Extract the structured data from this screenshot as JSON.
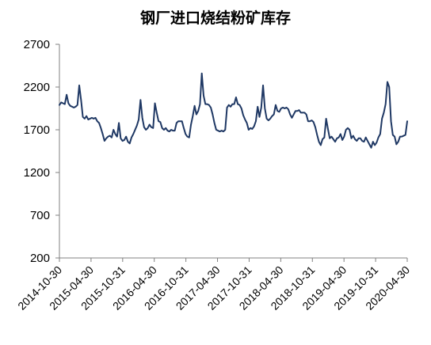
{
  "chart_data": {
    "type": "line",
    "title": "钢厂进口烧结粉矿库存",
    "xlabel": "",
    "ylabel": "",
    "ylim": [
      200,
      2700
    ],
    "y_ticks": [
      200,
      700,
      1200,
      1700,
      2200,
      2700
    ],
    "x_tick_labels": [
      "2014-10-30",
      "2015-04-30",
      "2015-10-31",
      "2016-04-30",
      "2016-10-31",
      "2017-04-30",
      "2017-10-31",
      "2018-04-30",
      "2018-10-31",
      "2019-04-30",
      "2019-10-31",
      "2020-04-30"
    ],
    "grid": false,
    "legend": "none",
    "line_color": "#1f3864",
    "series": [
      {
        "values": [
          1990,
          2020,
          2010,
          2000,
          2110,
          2010,
          1980,
          1970,
          1960,
          1970,
          1990,
          2220,
          2050,
          1850,
          1830,
          1860,
          1820,
          1830,
          1840,
          1830,
          1840,
          1800,
          1780,
          1720,
          1650,
          1570,
          1600,
          1620,
          1630,
          1610,
          1700,
          1650,
          1620,
          1780,
          1600,
          1570,
          1580,
          1620,
          1560,
          1540,
          1610,
          1650,
          1700,
          1750,
          1820,
          2050,
          1840,
          1730,
          1700,
          1720,
          1760,
          1730,
          1720,
          2010,
          1900,
          1800,
          1790,
          1720,
          1700,
          1720,
          1690,
          1680,
          1700,
          1690,
          1690,
          1780,
          1800,
          1800,
          1800,
          1720,
          1650,
          1620,
          1610,
          1760,
          1860,
          1980,
          1880,
          1920,
          2000,
          2360,
          2100,
          2000,
          2000,
          1990,
          1960,
          1880,
          1780,
          1700,
          1690,
          1680,
          1690,
          1680,
          1700,
          1960,
          1990,
          1970,
          2000,
          2000,
          2080,
          2000,
          1990,
          1950,
          1870,
          1820,
          1780,
          1700,
          1720,
          1710,
          1740,
          1800,
          1970,
          1850,
          1960,
          2220,
          1950,
          1830,
          1810,
          1830,
          1860,
          1880,
          1990,
          1920,
          1910,
          1950,
          1960,
          1950,
          1960,
          1940,
          1880,
          1840,
          1880,
          1920,
          1920,
          1930,
          1900,
          1900,
          1900,
          1880,
          1800,
          1800,
          1810,
          1790,
          1730,
          1640,
          1560,
          1520,
          1590,
          1610,
          1830,
          1710,
          1600,
          1620,
          1590,
          1560,
          1600,
          1610,
          1650,
          1580,
          1620,
          1700,
          1720,
          1700,
          1600,
          1630,
          1590,
          1570,
          1600,
          1600,
          1570,
          1560,
          1610,
          1570,
          1530,
          1490,
          1560,
          1520,
          1550,
          1610,
          1650,
          1830,
          1900,
          2000,
          2260,
          2200,
          1800,
          1640,
          1620,
          1530,
          1560,
          1620,
          1620,
          1630,
          1640,
          1800
        ]
      }
    ]
  }
}
